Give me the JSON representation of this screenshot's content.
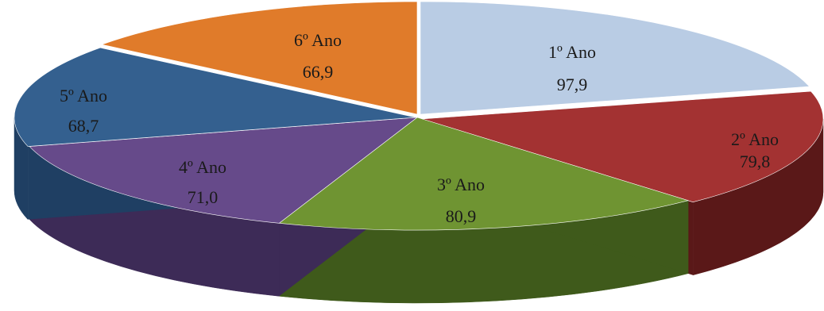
{
  "chart_data": {
    "type": "pie",
    "style": "3d-exploded-disc",
    "categories": [
      "1º Ano",
      "2º Ano",
      "3º Ano",
      "4º Ano",
      "5º Ano",
      "6º Ano"
    ],
    "values": [
      97.9,
      79.8,
      80.9,
      71.0,
      68.7,
      66.9
    ],
    "value_labels": [
      "97,9",
      "79,8",
      "80,9",
      "71,0",
      "68,7",
      "66,9"
    ],
    "colors": [
      "#b9cce4",
      "#a33232",
      "#6f9432",
      "#664a8a",
      "#34608f",
      "#e07b2a"
    ],
    "side_colors": [
      "#8aa0bd",
      "#5a1818",
      "#3f5a1b",
      "#3d2b57",
      "#1f3f63",
      "#9a5016"
    ],
    "start_angle_deg": -90,
    "direction": "clockwise",
    "legend": "none",
    "title": ""
  }
}
